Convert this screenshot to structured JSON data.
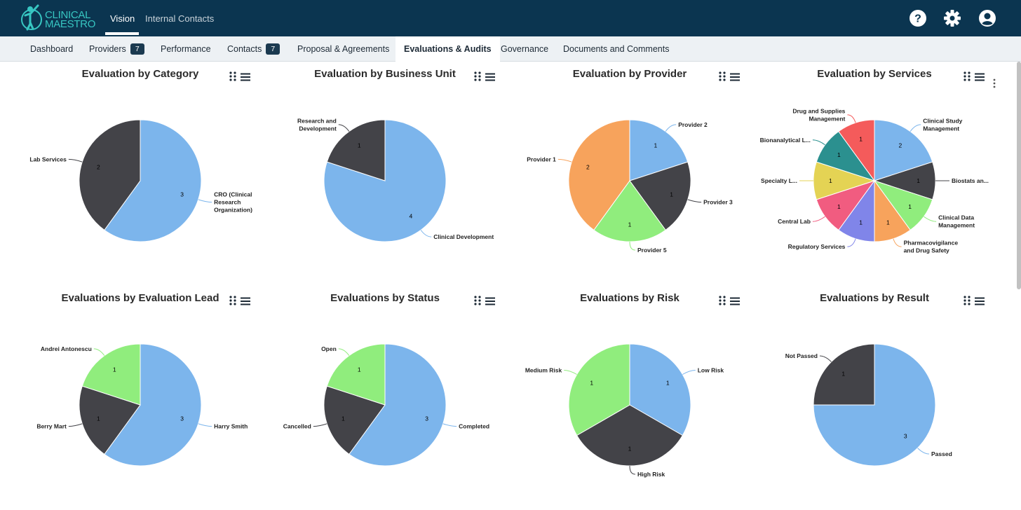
{
  "app": {
    "logo_line1": "CLINICAL",
    "logo_line2": "MAESTRO",
    "top_nav": [
      {
        "label": "Vision"
      },
      {
        "label": "Internal Contacts"
      }
    ]
  },
  "tabs": [
    {
      "label": "Dashboard",
      "badge": ""
    },
    {
      "label": "Providers",
      "badge": "7"
    },
    {
      "label": "Performance",
      "badge": ""
    },
    {
      "label": "Contacts",
      "badge": "7"
    },
    {
      "label": "Proposal & Agreements",
      "badge": ""
    },
    {
      "label": "Evaluations & Audits",
      "badge": ""
    },
    {
      "label": "Governance",
      "badge": ""
    },
    {
      "label": "Documents and Comments",
      "badge": ""
    }
  ],
  "icons": {
    "help": "help-icon",
    "settings": "gear-icon",
    "account": "account-icon",
    "chart_grip": "grip-icon",
    "chart_menu": "menu-icon",
    "more": "more-vertical-icon"
  },
  "colors": {
    "topbar": "#0b3550",
    "blue": "#7cb5ec",
    "dark": "#434348",
    "green": "#90ed7d",
    "orange": "#f7a35c",
    "purple": "#8085e9",
    "pink": "#f15c80",
    "yellow": "#e4d354",
    "teal": "#2b908f",
    "red": "#f45b5b"
  },
  "chart_data": [
    {
      "type": "pie",
      "title": "Evaluation by Category",
      "series": [
        {
          "label": "CRO (Clinical Research Organization)",
          "value": 3,
          "color": "#7cb5ec"
        },
        {
          "label": "Lab Services",
          "value": 2,
          "color": "#434348"
        }
      ]
    },
    {
      "type": "pie",
      "title": "Evaluation by Business Unit",
      "series": [
        {
          "label": "Clinical Development",
          "value": 4,
          "color": "#7cb5ec"
        },
        {
          "label": "Research and Development",
          "value": 1,
          "color": "#434348"
        }
      ]
    },
    {
      "type": "pie",
      "title": "Evaluation by Provider",
      "series": [
        {
          "label": "Provider 2",
          "value": 1,
          "color": "#7cb5ec"
        },
        {
          "label": "Provider 3",
          "value": 1,
          "color": "#434348"
        },
        {
          "label": "Provider 5",
          "value": 1,
          "color": "#90ed7d"
        },
        {
          "label": "Provider 1",
          "value": 2,
          "color": "#f7a35c"
        }
      ]
    },
    {
      "type": "pie",
      "title": "Evaluation by Services",
      "series": [
        {
          "label": "Clinical Study Management",
          "value": 2,
          "color": "#7cb5ec"
        },
        {
          "label": "Biostats an...",
          "value": 1,
          "color": "#434348"
        },
        {
          "label": "Clinical Data Management",
          "value": 1,
          "color": "#90ed7d"
        },
        {
          "label": "Pharmacovigilance and Drug Safety",
          "value": 1,
          "color": "#f7a35c"
        },
        {
          "label": "Regulatory Services",
          "value": 1,
          "color": "#8085e9"
        },
        {
          "label": "Central Lab",
          "value": 1,
          "color": "#f15c80"
        },
        {
          "label": "Specialty L...",
          "value": 1,
          "color": "#e4d354"
        },
        {
          "label": "Bionanalytical L...",
          "value": 1,
          "color": "#2b908f"
        },
        {
          "label": "Drug and Supplies Management",
          "value": 1,
          "color": "#f45b5b"
        }
      ]
    },
    {
      "type": "pie",
      "title": "Evaluations by Evaluation Lead",
      "series": [
        {
          "label": "Harry Smith",
          "value": 3,
          "color": "#7cb5ec"
        },
        {
          "label": "Berry Mart",
          "value": 1,
          "color": "#434348"
        },
        {
          "label": "Andrei Antonescu",
          "value": 1,
          "color": "#90ed7d"
        }
      ]
    },
    {
      "type": "pie",
      "title": "Evaluations by Status",
      "series": [
        {
          "label": "Completed",
          "value": 3,
          "color": "#7cb5ec"
        },
        {
          "label": "Cancelled",
          "value": 1,
          "color": "#434348"
        },
        {
          "label": "Open",
          "value": 1,
          "color": "#90ed7d"
        }
      ]
    },
    {
      "type": "pie",
      "title": "Evaluations by Risk",
      "series": [
        {
          "label": "Low Risk",
          "value": 1,
          "color": "#7cb5ec"
        },
        {
          "label": "High Risk",
          "value": 1,
          "color": "#434348"
        },
        {
          "label": "Medium Risk",
          "value": 1,
          "color": "#90ed7d"
        }
      ]
    },
    {
      "type": "pie",
      "title": "Evaluations by Result",
      "series": [
        {
          "label": "Passed",
          "value": 3,
          "color": "#7cb5ec"
        },
        {
          "label": "Not Passed",
          "value": 1,
          "color": "#434348"
        }
      ]
    }
  ]
}
